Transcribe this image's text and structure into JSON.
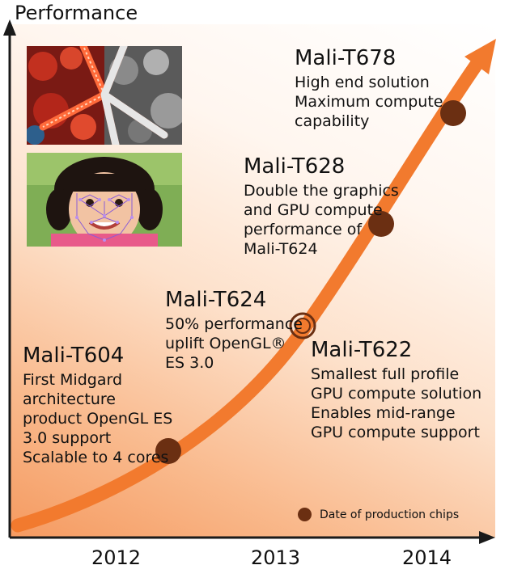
{
  "axis": {
    "y_label": "Performance",
    "x_ticks": [
      "2012",
      "2013",
      "2014"
    ]
  },
  "products": [
    {
      "name": "Mali-T678",
      "description": "High end solution\nMaximum compute\ncapability"
    },
    {
      "name": "Mali-T628",
      "description": "Double the graphics\nand GPU compute\nperformance of\nMali-T624"
    },
    {
      "name": "Mali-T624",
      "description": "50% performance\nuplift OpenGL®\nES 3.0"
    },
    {
      "name": "Mali-T622",
      "description": "Smallest full profile\nGPU compute solution\nEnables mid-range\nGPU compute support"
    },
    {
      "name": "Mali-T604",
      "description": "First Midgard\narchitecture\nproduct OpenGL ES\n3.0 support\nScalable to 4 cores"
    }
  ],
  "legend": {
    "label": "Date of production chips"
  },
  "colors": {
    "curve": "#f27a2e",
    "dot": "#6b2f12",
    "axis": "#1a1a1a"
  },
  "images": [
    {
      "icon": "starfish-photo"
    },
    {
      "icon": "face-tracking-photo"
    }
  ]
}
